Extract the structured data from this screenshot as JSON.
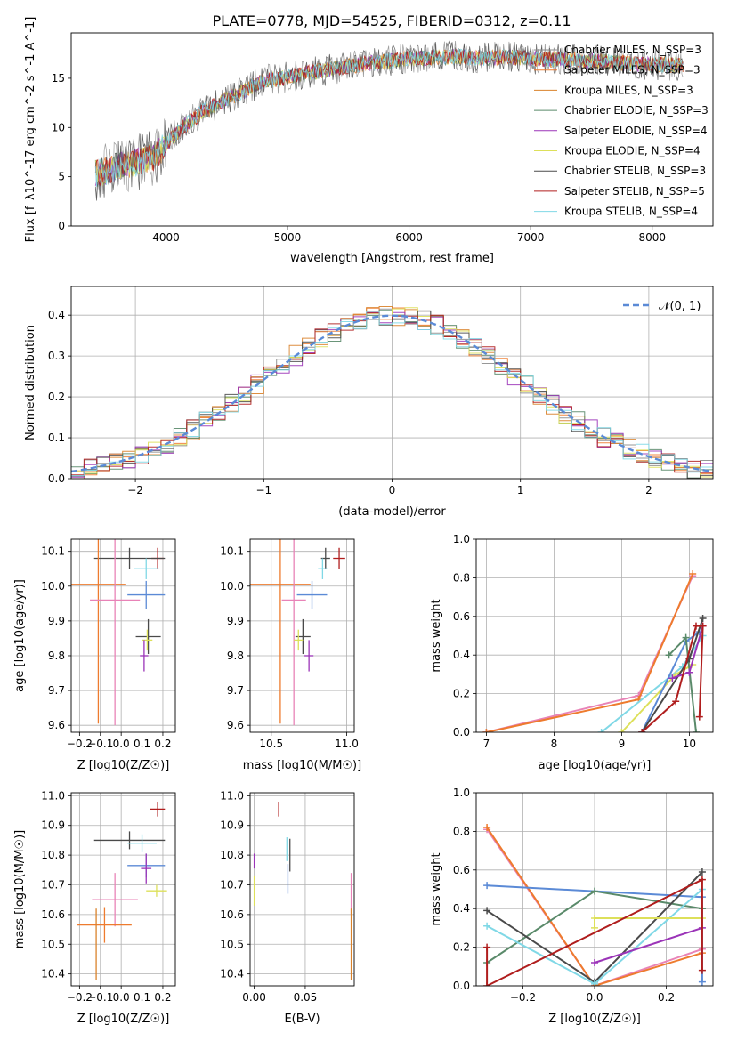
{
  "figure": {
    "title": "PLATE=0778, MJD=54525, FIBERID=0312, z=0.11"
  },
  "chart_data": [
    {
      "id": "spectrum",
      "type": "line",
      "xlabel": "wavelength [Angstrom, rest frame]",
      "ylabel": "Flux [f_λ10^-17 erg cm^-2 s^-1 A^-1]",
      "xlim": [
        3220,
        8500
      ],
      "ylim": [
        0,
        19.6
      ],
      "xticks": [
        4000,
        5000,
        6000,
        7000,
        8000
      ],
      "yticks": [
        0,
        5,
        10,
        15
      ],
      "grid": false,
      "legend_position": "right",
      "legend": [
        {
          "label": "Chabrier MILES, N_SSP=3",
          "color": "#8c8c8c"
        },
        {
          "label": "Salpeter MILES, N_SSP=3",
          "color": "#ee7b2e"
        },
        {
          "label": "Kroupa MILES, N_SSP=3",
          "color": "#d9822b"
        },
        {
          "label": "Chabrier ELODIE, N_SSP=3",
          "color": "#5a8a6a"
        },
        {
          "label": "Salpeter ELODIE, N_SSP=4",
          "color": "#9b34b8"
        },
        {
          "label": "Kroupa ELODIE, N_SSP=4",
          "color": "#dde05a"
        },
        {
          "label": "Chabrier STELIB, N_SSP=3",
          "color": "#4a4a4a"
        },
        {
          "label": "Salpeter STELIB, N_SSP=5",
          "color": "#b01e1e"
        },
        {
          "label": "Kroupa STELIB, N_SSP=4",
          "color": "#80d8e6"
        }
      ],
      "spectrum_envelope": {
        "x": [
          3400,
          3500,
          3600,
          3700,
          3800,
          3900,
          4000,
          4100,
          4200,
          4300,
          4400,
          4500,
          4600,
          4700,
          4800,
          4900,
          5000,
          5200,
          5400,
          5600,
          5800,
          6000,
          6200,
          6400,
          6600,
          6800,
          7000,
          7200,
          7500,
          7800,
          8000,
          8250
        ],
        "y": [
          5.2,
          5.5,
          6.0,
          6.3,
          6.6,
          6.9,
          8.3,
          9.6,
          10.6,
          11.6,
          12.2,
          12.9,
          13.4,
          14.1,
          14.8,
          14.9,
          15.1,
          15.6,
          16.0,
          16.4,
          16.7,
          17.0,
          17.1,
          17.2,
          17.0,
          17.2,
          17.0,
          16.9,
          16.8,
          16.5,
          16.4,
          16.3
        ]
      }
    },
    {
      "id": "residuals",
      "type": "line",
      "xlabel": "(data-model)/error",
      "ylabel": "Normed distribution",
      "xlim": [
        -2.5,
        2.5
      ],
      "ylim": [
        0,
        0.47
      ],
      "xticks": [
        -2,
        -1,
        0,
        1,
        2
      ],
      "yticks": [
        0.0,
        0.1,
        0.2,
        0.3,
        0.4
      ],
      "grid": true,
      "legend_position": "top-right",
      "legend": [
        {
          "label": "𝒩(0, 1)",
          "color": "#5b8ad6",
          "style": "dashed"
        }
      ],
      "gaussian": {
        "mean": 0,
        "sigma": 1
      }
    },
    {
      "id": "age-vs-Z",
      "type": "scatter",
      "xlabel": "Z [log10(Z/Z☉)]",
      "ylabel": "age [log10(age/yr)]",
      "xlim": [
        -0.24,
        0.26
      ],
      "ylim": [
        9.58,
        10.135
      ],
      "xticks": [
        -0.2,
        -0.1,
        0.0,
        0.1,
        0.2
      ],
      "yticks": [
        9.6,
        9.7,
        9.8,
        9.9,
        10.0,
        10.1
      ],
      "grid": true,
      "points": [
        {
          "x": 0.175,
          "y": 10.08,
          "xerr": 0.03,
          "yerr": 0.03,
          "color": "#b01e1e"
        },
        {
          "x": 0.04,
          "y": 10.08,
          "xerr": 0.17,
          "yerr": 0.03,
          "color": "#4a4a4a"
        },
        {
          "x": 0.12,
          "y": 10.05,
          "xerr": 0.06,
          "yerr": 0.03,
          "color": "#80d8e6"
        },
        {
          "x": -0.11,
          "y": 10.005,
          "xerr": 0.13,
          "yerr": 0.4,
          "color": "#ee7b2e"
        },
        {
          "x": 0.12,
          "y": 9.975,
          "xerr": 0.09,
          "yerr": 0.04,
          "color": "#5b8ad6"
        },
        {
          "x": -0.03,
          "y": 9.96,
          "xerr": 0.12,
          "yerr": 0.36,
          "color": "#e883b7"
        },
        {
          "x": 0.13,
          "y": 9.855,
          "xerr": 0.06,
          "yerr": 0.05,
          "color": "#4a4a4a"
        },
        {
          "x": 0.125,
          "y": 9.845,
          "xerr": 0.025,
          "yerr": 0.03,
          "color": "#dde05a"
        },
        {
          "x": 0.11,
          "y": 9.8,
          "xerr": 0.02,
          "yerr": 0.045,
          "color": "#9b34b8"
        }
      ]
    },
    {
      "id": "age-vs-mass",
      "type": "scatter",
      "xlabel": "mass [log10(M/M☉)]",
      "ylabel": "",
      "xlim": [
        10.36,
        11.05
      ],
      "ylim": [
        9.58,
        10.135
      ],
      "xticks": [
        10.5,
        11.0
      ],
      "yticks": [
        9.6,
        9.7,
        9.8,
        9.9,
        10.0,
        10.1
      ],
      "grid": true,
      "points": [
        {
          "x": 10.95,
          "y": 10.08,
          "xerr": 0.04,
          "yerr": 0.03,
          "color": "#b01e1e"
        },
        {
          "x": 10.86,
          "y": 10.08,
          "xerr": 0.03,
          "yerr": 0.03,
          "color": "#4a4a4a"
        },
        {
          "x": 10.84,
          "y": 10.05,
          "xerr": 0.03,
          "yerr": 0.03,
          "color": "#80d8e6"
        },
        {
          "x": 10.56,
          "y": 10.005,
          "xerr": 0.2,
          "yerr": 0.4,
          "color": "#ee7b2e"
        },
        {
          "x": 10.77,
          "y": 9.975,
          "xerr": 0.1,
          "yerr": 0.04,
          "color": "#5b8ad6"
        },
        {
          "x": 10.65,
          "y": 9.96,
          "xerr": 0.08,
          "yerr": 0.36,
          "color": "#e883b7"
        },
        {
          "x": 10.71,
          "y": 9.855,
          "xerr": 0.05,
          "yerr": 0.05,
          "color": "#4a4a4a"
        },
        {
          "x": 10.68,
          "y": 9.845,
          "xerr": 0.03,
          "yerr": 0.03,
          "color": "#dde05a"
        },
        {
          "x": 10.75,
          "y": 9.8,
          "xerr": 0.03,
          "yerr": 0.045,
          "color": "#9b34b8"
        }
      ]
    },
    {
      "id": "massweight-vs-age",
      "type": "line",
      "xlabel": "age [log10(age/yr)]",
      "ylabel": "mass weight",
      "xlim": [
        6.85,
        10.35
      ],
      "ylim": [
        0,
        1.0
      ],
      "xticks": [
        7,
        8,
        9,
        10
      ],
      "yticks": [
        0.0,
        0.2,
        0.4,
        0.6,
        0.8,
        1.0
      ],
      "grid": true,
      "series": [
        {
          "color": "#e883b7",
          "x": [
            7.0,
            9.25,
            10.05
          ],
          "y": [
            0.0,
            0.19,
            0.81
          ]
        },
        {
          "color": "#ee7b2e",
          "x": [
            7.0,
            9.25,
            10.05
          ],
          "y": [
            0.0,
            0.17,
            0.82
          ]
        },
        {
          "color": "#80d8e6",
          "x": [
            8.7,
            9.9,
            10.2
          ],
          "y": [
            0.0,
            0.34,
            0.5
          ]
        },
        {
          "color": "#dde05a",
          "x": [
            9.0,
            9.8,
            10.05
          ],
          "y": [
            0.0,
            0.3,
            0.35
          ]
        },
        {
          "color": "#5b8ad6",
          "x": [
            9.3,
            9.95,
            10.15
          ],
          "y": [
            0.0,
            0.47,
            0.52
          ]
        },
        {
          "color": "#5a8a6a",
          "x": [
            9.7,
            9.95,
            10.1
          ],
          "y": [
            0.4,
            0.49,
            0.0
          ]
        },
        {
          "color": "#4a4a4a",
          "x": [
            9.3,
            10.0,
            10.2
          ],
          "y": [
            0.0,
            0.38,
            0.59
          ]
        },
        {
          "color": "#9b34b8",
          "x": [
            9.75,
            10.0,
            10.2
          ],
          "y": [
            0.28,
            0.31,
            0.55
          ]
        },
        {
          "color": "#b01e1e",
          "x": [
            9.3,
            9.8,
            10.1,
            10.2,
            10.15
          ],
          "y": [
            0.0,
            0.16,
            0.55,
            0.55,
            0.08
          ]
        }
      ]
    },
    {
      "id": "mass-vs-Z",
      "type": "scatter",
      "xlabel": "Z [log10(Z/Z☉)]",
      "ylabel": "mass [log10(M/M☉)]",
      "xlim": [
        -0.24,
        0.26
      ],
      "ylim": [
        10.36,
        11.01
      ],
      "xticks": [
        -0.2,
        -0.1,
        0.0,
        0.1,
        0.2
      ],
      "yticks": [
        10.4,
        10.5,
        10.6,
        10.7,
        10.8,
        10.9,
        11.0
      ],
      "grid": true,
      "points": [
        {
          "x": 0.175,
          "y": 10.955,
          "xerr": 0.035,
          "yerr": 0.025,
          "color": "#b01e1e"
        },
        {
          "x": 0.04,
          "y": 10.85,
          "xerr": 0.17,
          "yerr": 0.03,
          "color": "#4a4a4a"
        },
        {
          "x": 0.1,
          "y": 10.84,
          "xerr": 0.07,
          "yerr": 0.03,
          "color": "#80d8e6"
        },
        {
          "x": 0.12,
          "y": 10.765,
          "xerr": 0.09,
          "yerr": 0.04,
          "color": "#5b8ad6"
        },
        {
          "x": 0.12,
          "y": 10.755,
          "xerr": 0.025,
          "yerr": 0.05,
          "color": "#9b34b8"
        },
        {
          "x": 0.17,
          "y": 10.68,
          "xerr": 0.05,
          "yerr": 0.02,
          "color": "#dde05a"
        },
        {
          "x": -0.03,
          "y": 10.65,
          "xerr": 0.11,
          "yerr": 0.09,
          "color": "#e883b7"
        },
        {
          "x": -0.08,
          "y": 10.565,
          "xerr": 0.13,
          "yerr": 0.06,
          "color": "#ee7b2e"
        },
        {
          "x": -0.12,
          "y": 10.5,
          "xerr": 0.0,
          "yerr": 0.12,
          "color": "#d9822b"
        }
      ]
    },
    {
      "id": "mass-vs-EBV",
      "type": "scatter",
      "xlabel": "E(B-V)",
      "ylabel": "",
      "xlim": [
        -0.004,
        0.098
      ],
      "ylim": [
        10.36,
        11.01
      ],
      "xticks": [
        0.0,
        0.05
      ],
      "yticks": [
        10.4,
        10.5,
        10.6,
        10.7,
        10.8,
        10.9,
        11.0
      ],
      "grid": true,
      "points": [
        {
          "x": 0.024,
          "y": 10.955,
          "xerr": 0.0,
          "yerr": 0.025,
          "color": "#b01e1e"
        },
        {
          "x": 0.035,
          "y": 10.8,
          "xerr": 0.0,
          "yerr": 0.055,
          "color": "#4a4a4a"
        },
        {
          "x": 0.032,
          "y": 10.82,
          "xerr": 0.0,
          "yerr": 0.04,
          "color": "#80d8e6"
        },
        {
          "x": 0.033,
          "y": 10.72,
          "xerr": 0.0,
          "yerr": 0.05,
          "color": "#5b8ad6"
        },
        {
          "x": 0.0,
          "y": 10.78,
          "xerr": 0.0,
          "yerr": 0.025,
          "color": "#9b34b8"
        },
        {
          "x": 0.0,
          "y": 10.68,
          "xerr": 0.0,
          "yerr": 0.05,
          "color": "#dde05a"
        },
        {
          "x": 0.095,
          "y": 10.67,
          "xerr": 0.0,
          "yerr": 0.07,
          "color": "#e883b7"
        },
        {
          "x": 0.095,
          "y": 10.5,
          "xerr": 0.0,
          "yerr": 0.12,
          "color": "#d9822b"
        }
      ]
    },
    {
      "id": "massweight-vs-Z",
      "type": "line",
      "xlabel": "Z [log10(Z/Z☉)]",
      "ylabel": "mass weight",
      "xlim": [
        -0.33,
        0.33
      ],
      "ylim": [
        0,
        1.0
      ],
      "xticks": [
        -0.2,
        0.0,
        0.2
      ],
      "yticks": [
        0.0,
        0.2,
        0.4,
        0.6,
        0.8,
        1.0
      ],
      "grid": true,
      "series": [
        {
          "color": "#e883b7",
          "x": [
            -0.3,
            0.0,
            0.3
          ],
          "y": [
            0.81,
            0.0,
            0.19
          ]
        },
        {
          "color": "#ee7b2e",
          "x": [
            -0.3,
            0.0,
            0.3
          ],
          "y": [
            0.82,
            0.0,
            0.17
          ]
        },
        {
          "color": "#5b8ad6",
          "x": [
            -0.3,
            0.3,
            0.3
          ],
          "y": [
            0.52,
            0.46,
            0.02
          ]
        },
        {
          "color": "#5a8a6a",
          "x": [
            -0.3,
            0.0,
            0.3
          ],
          "y": [
            0.12,
            0.49,
            0.4
          ]
        },
        {
          "color": "#4a4a4a",
          "x": [
            -0.3,
            0.0,
            0.3
          ],
          "y": [
            0.39,
            0.02,
            0.59
          ]
        },
        {
          "color": "#80d8e6",
          "x": [
            -0.3,
            0.0,
            0.3
          ],
          "y": [
            0.31,
            0.01,
            0.5
          ]
        },
        {
          "color": "#dde05a",
          "x": [
            0.0,
            0.0,
            0.3
          ],
          "y": [
            0.3,
            0.35,
            0.35
          ]
        },
        {
          "color": "#9b34b8",
          "x": [
            0.0,
            0.3
          ],
          "y": [
            0.12,
            0.3
          ]
        },
        {
          "color": "#b01e1e",
          "x": [
            -0.3,
            -0.3,
            0.3,
            0.3
          ],
          "y": [
            0.2,
            0.0,
            0.55,
            0.08
          ]
        }
      ]
    }
  ]
}
